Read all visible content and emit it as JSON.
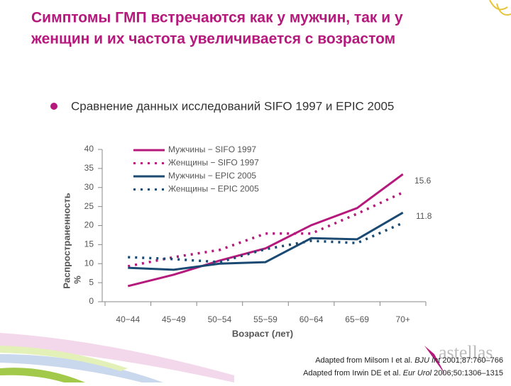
{
  "chart_data": {
    "type": "line",
    "title_lines": [
      "Симптомы ГМП встречаются как у мужчин, так и у",
      "женщин и их частота увеличивается с возрастом"
    ],
    "subtitle": "Сравнение данных исследований SIFO 1997 и EPIC  2005",
    "categories": [
      "40−44",
      "45−49",
      "50−54",
      "55−59",
      "60−64",
      "65−69",
      "70+"
    ],
    "series": [
      {
        "name": "Мужчины − SIFO 1997",
        "color": "#b5197c",
        "style": "solid",
        "values": [
          4.1,
          7.1,
          10.8,
          14.0,
          20.1,
          24.6,
          33.5
        ]
      },
      {
        "name": "Женщины − SIFO 1997",
        "color": "#b5197c",
        "style": "dotted",
        "values": [
          9.3,
          11.7,
          13.6,
          17.9,
          17.9,
          23.1,
          28.7
        ]
      },
      {
        "name": "Мужчины − EPIC 2005",
        "color": "#1a4a72",
        "style": "solid",
        "values": [
          8.9,
          8.4,
          10.0,
          10.4,
          16.7,
          16.4,
          23.4
        ]
      },
      {
        "name": "Женщины − EPIC 2005",
        "color": "#1a4a72",
        "style": "dotted",
        "values": [
          11.7,
          11.2,
          10.4,
          13.8,
          16.0,
          15.4,
          20.7
        ]
      }
    ],
    "ylim": [
      0,
      40
    ],
    "yticks": [
      0,
      5,
      10,
      15,
      20,
      25,
      30,
      35,
      40
    ],
    "ylabel": "Распространенность",
    "yunit": "%",
    "xlabel": "Возраст (лет)",
    "annotations": [
      "15.6",
      "11.8"
    ],
    "references": [
      {
        "pre": "Adapted from Milsom I et al. ",
        "journal": "BJU Int",
        "post": " 2001;87:760–766"
      },
      {
        "pre": "Adapted from Irwin DE et al. ",
        "journal": "Eur Urol",
        "post": " 2006;50:1306–1315"
      }
    ],
    "logo": "astellas"
  }
}
